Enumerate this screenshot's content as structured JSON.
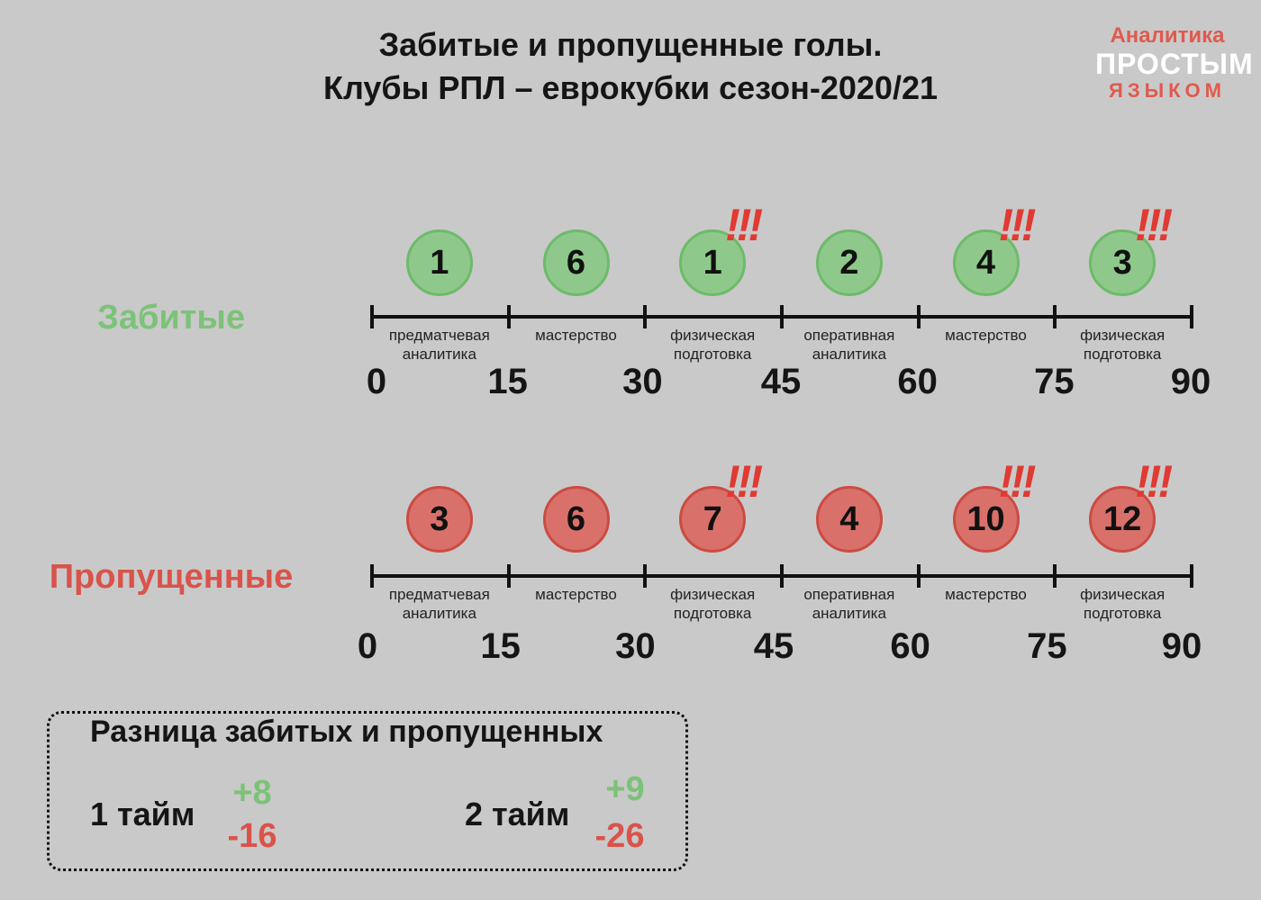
{
  "title": {
    "line1": "Забитые и пропущенные голы.",
    "line2": "Клубы РПЛ – еврокубки сезон-2020/21"
  },
  "logo": {
    "line1": "Аналитика",
    "line2": "ПРОСТЫМ",
    "line3": "ЯЗЫКОМ"
  },
  "colors": {
    "green": "#8ec98b",
    "red": "#d9716a",
    "alert": "#e03a32",
    "background": "#c9c9c9"
  },
  "timeline": {
    "ticks": [
      "0",
      "15",
      "30",
      "45",
      "60",
      "75",
      "90"
    ],
    "phases": [
      [
        "предматчевая",
        "аналитика"
      ],
      [
        "мастерство"
      ],
      [
        "физическая",
        "подготовка"
      ],
      [
        "оперативная",
        "аналитика"
      ],
      [
        "мастерство"
      ],
      [
        "физическая",
        "подготовка"
      ]
    ]
  },
  "scored": {
    "label": "Забитые",
    "values": [
      "1",
      "6",
      "1",
      "2",
      "4",
      "3"
    ],
    "alerts": [
      false,
      false,
      true,
      false,
      true,
      true
    ],
    "alert_mark": "!!!"
  },
  "conceded": {
    "label": "Пропущенные",
    "values": [
      "3",
      "6",
      "7",
      "4",
      "10",
      "12"
    ],
    "alerts": [
      false,
      false,
      true,
      false,
      true,
      true
    ],
    "alert_mark": "!!!"
  },
  "difference": {
    "title": "Разница забитых и пропущенных",
    "half1": {
      "label": "1 тайм",
      "plus": "+8",
      "minus": "-16"
    },
    "half2": {
      "label": "2 тайм",
      "plus": "+9",
      "minus": "-26"
    }
  }
}
